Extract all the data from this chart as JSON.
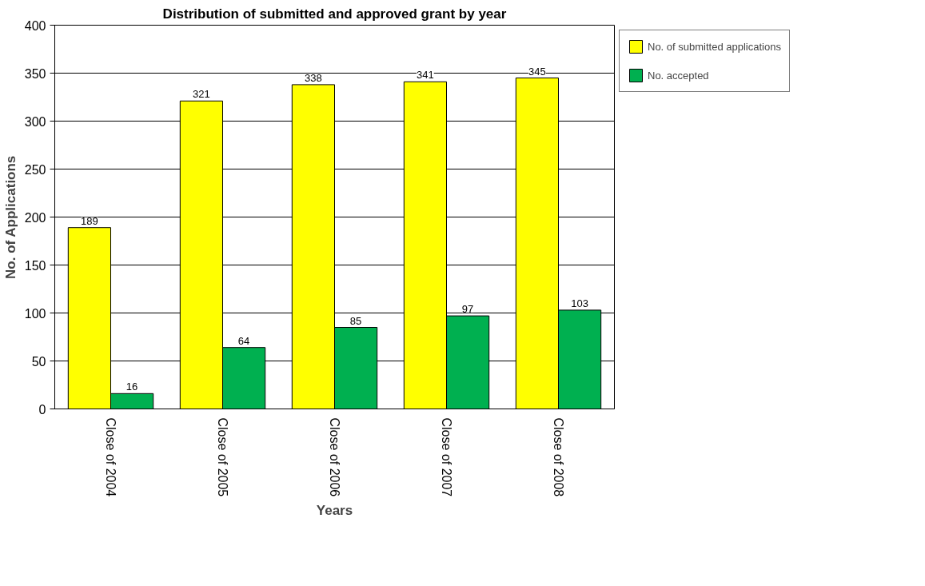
{
  "chart_data": {
    "type": "bar",
    "title": "Distribution of submitted and approved grant by year",
    "xlabel": "Years",
    "ylabel": "No. of Applications",
    "categories": [
      "Close of 2004",
      "Close of 2005",
      "Close of 2006",
      "Close of 2007",
      "Close of 2008"
    ],
    "series": [
      {
        "name": "No. of submitted applications",
        "color": "#ffff00",
        "values": [
          189,
          321,
          338,
          341,
          345
        ]
      },
      {
        "name": "No. accepted",
        "color": "#00b050",
        "values": [
          16,
          64,
          85,
          97,
          103
        ]
      }
    ],
    "ylim": [
      0,
      400
    ],
    "yticks": [
      0,
      50,
      100,
      150,
      200,
      250,
      300,
      350,
      400
    ],
    "grid": "y",
    "legend": "right",
    "data_labels": true
  }
}
